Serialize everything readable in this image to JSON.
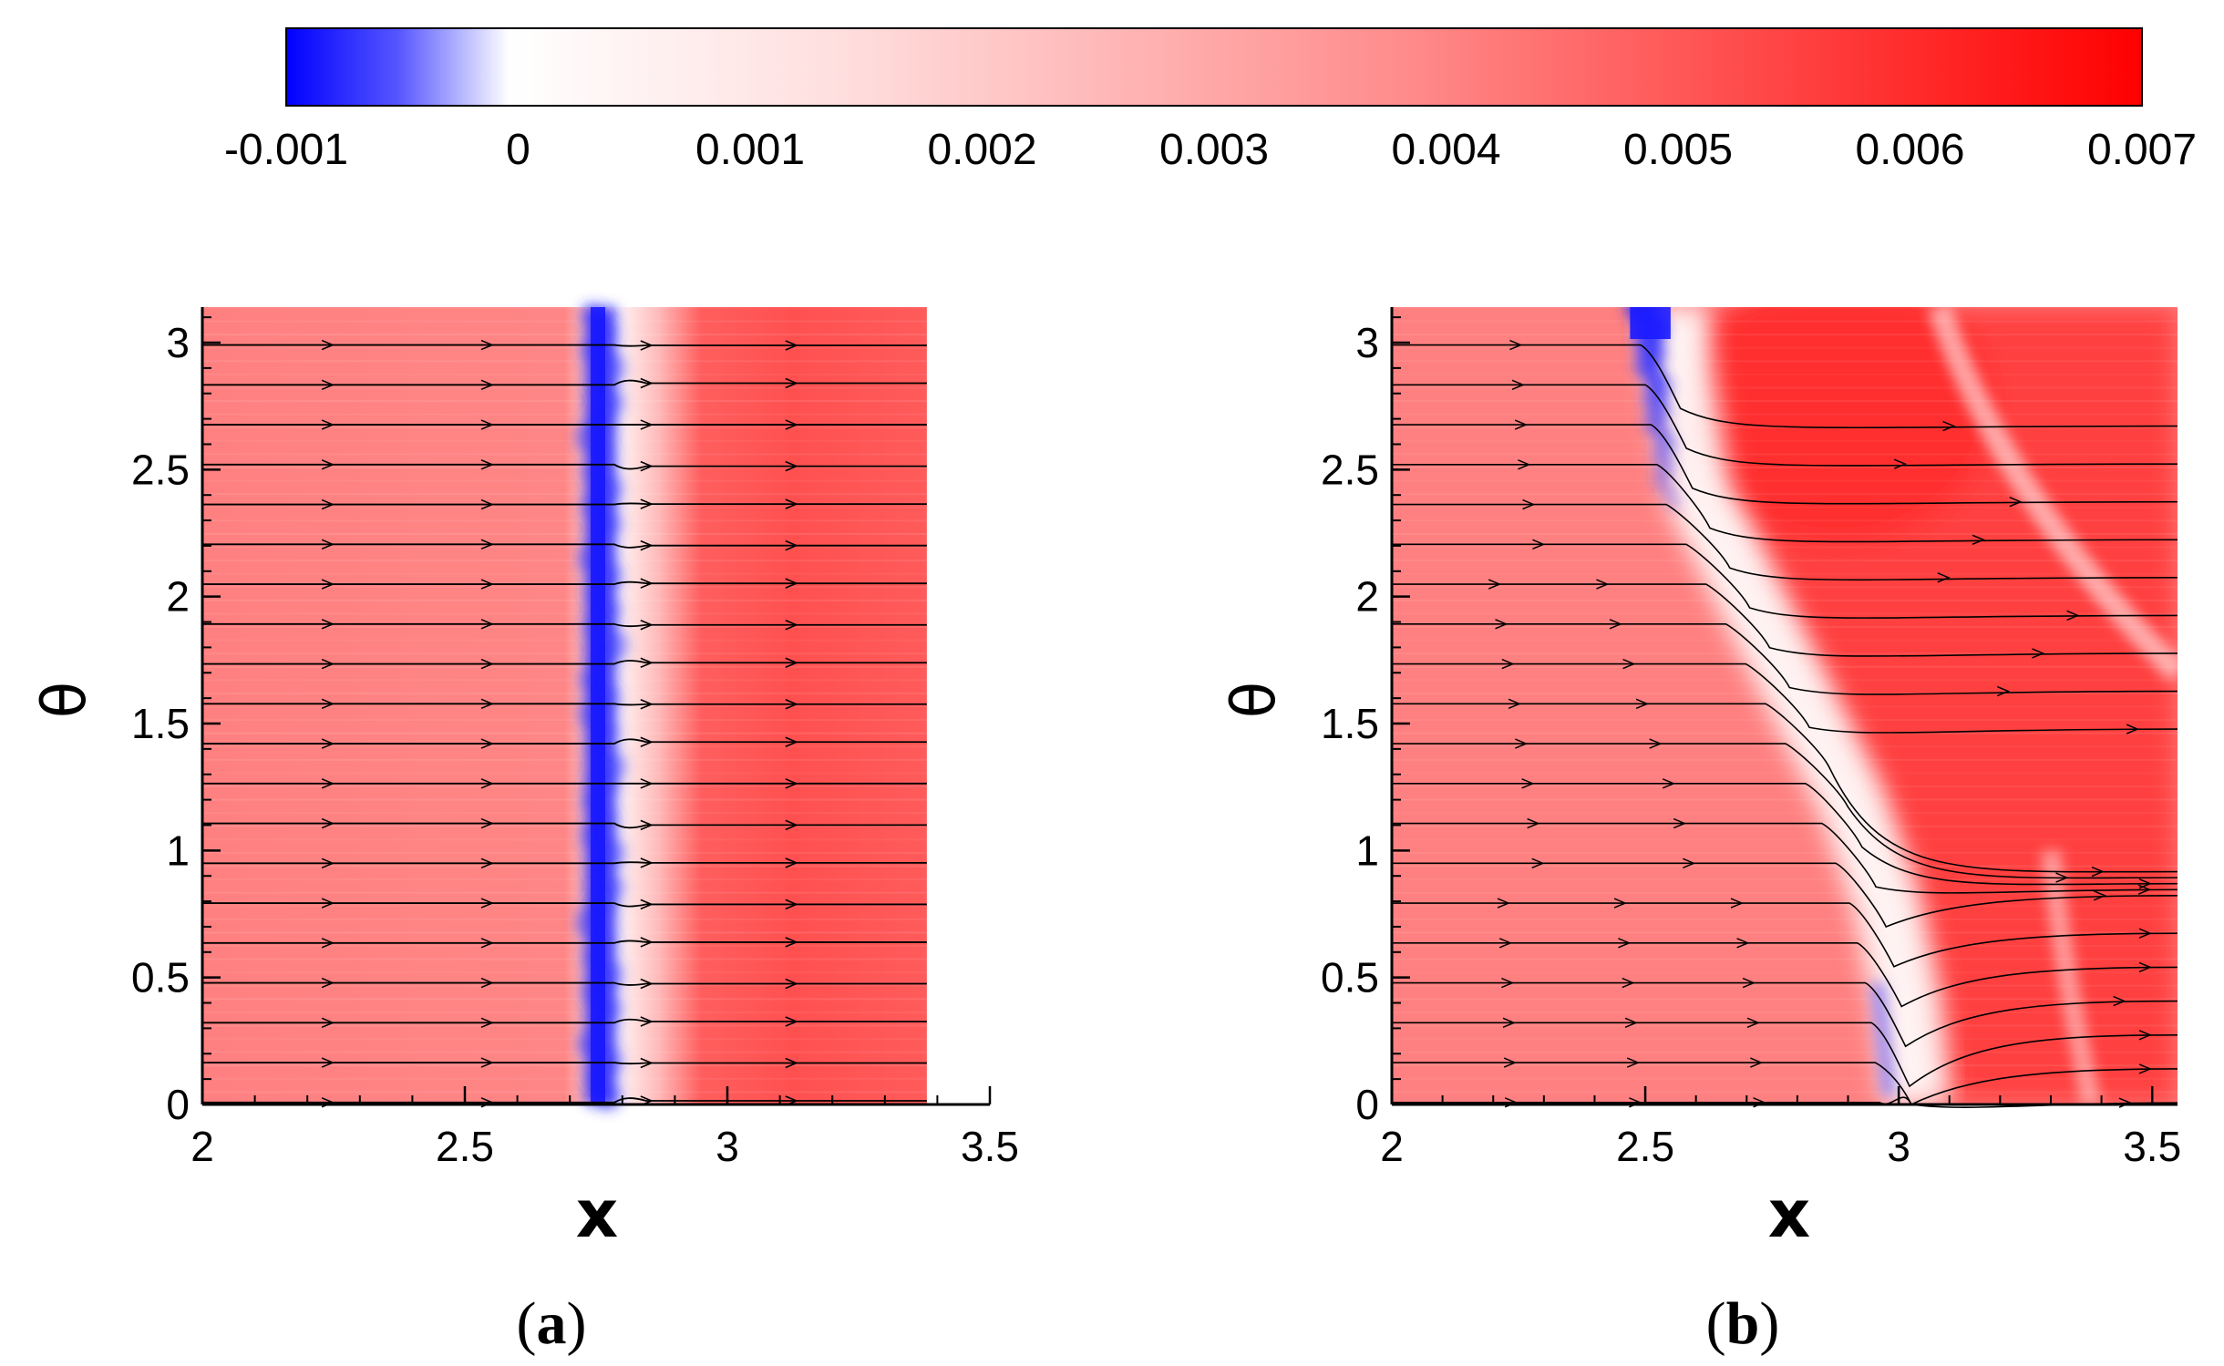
{
  "colorbar": {
    "min": -0.001,
    "max": 0.007,
    "ticks": [
      "-0.001",
      "0",
      "0.001",
      "0.002",
      "0.003",
      "0.004",
      "0.005",
      "0.006",
      "0.007"
    ],
    "colors": {
      "negative": "#0000ff",
      "zero": "#ffffff",
      "positive": "#ff0000"
    }
  },
  "chart_data": [
    {
      "type": "heatmap",
      "panel": "a",
      "title": "",
      "xlabel": "x",
      "ylabel": "θ",
      "xlim": [
        2,
        3.5
      ],
      "ylim": [
        0,
        3.14
      ],
      "data_extent_x": [
        2,
        3.38
      ],
      "xticks": [
        "2",
        "2.5",
        "3",
        "3.5"
      ],
      "yticks": [
        "0",
        "0.5",
        "1",
        "1.5",
        "2",
        "2.5",
        "3"
      ],
      "panel_label": {
        "open": "(",
        "letter": "a",
        "close": ")"
      },
      "field": {
        "description": "streamlines with color field",
        "front_x": 2.75,
        "front_shape": "vertical",
        "max_region_x": [
          2.95,
          3.3
        ],
        "background_value": 0.0035,
        "max_value": 0.0048,
        "front_value": -0.001
      },
      "streamlines": {
        "count": 20,
        "direction": "+x"
      }
    },
    {
      "type": "heatmap",
      "panel": "b",
      "title": "",
      "xlabel": "x",
      "ylabel": "θ",
      "xlim": [
        2,
        3.55
      ],
      "ylim": [
        0,
        3.14
      ],
      "xticks": [
        "2",
        "2.5",
        "3",
        "3.5"
      ],
      "yticks": [
        "0",
        "0.5",
        "1",
        "1.5",
        "2",
        "2.5",
        "3"
      ],
      "panel_label": {
        "open": "(",
        "letter": "b",
        "close": ")"
      },
      "field": {
        "description": "streamlines with color field, inclined front",
        "front_points_x": [
          2.5,
          2.52,
          2.55,
          2.65,
          2.75,
          2.85,
          2.92,
          2.96,
          2.98
        ],
        "front_points_theta": [
          3.14,
          2.8,
          2.4,
          2.0,
          1.6,
          1.2,
          0.8,
          0.4,
          0.0
        ],
        "background_value": 0.0035,
        "max_value": 0.0058,
        "front_value": -0.001,
        "convergence_theta": 0.8
      },
      "streamlines": {
        "count": 20,
        "direction": "+x"
      }
    }
  ]
}
